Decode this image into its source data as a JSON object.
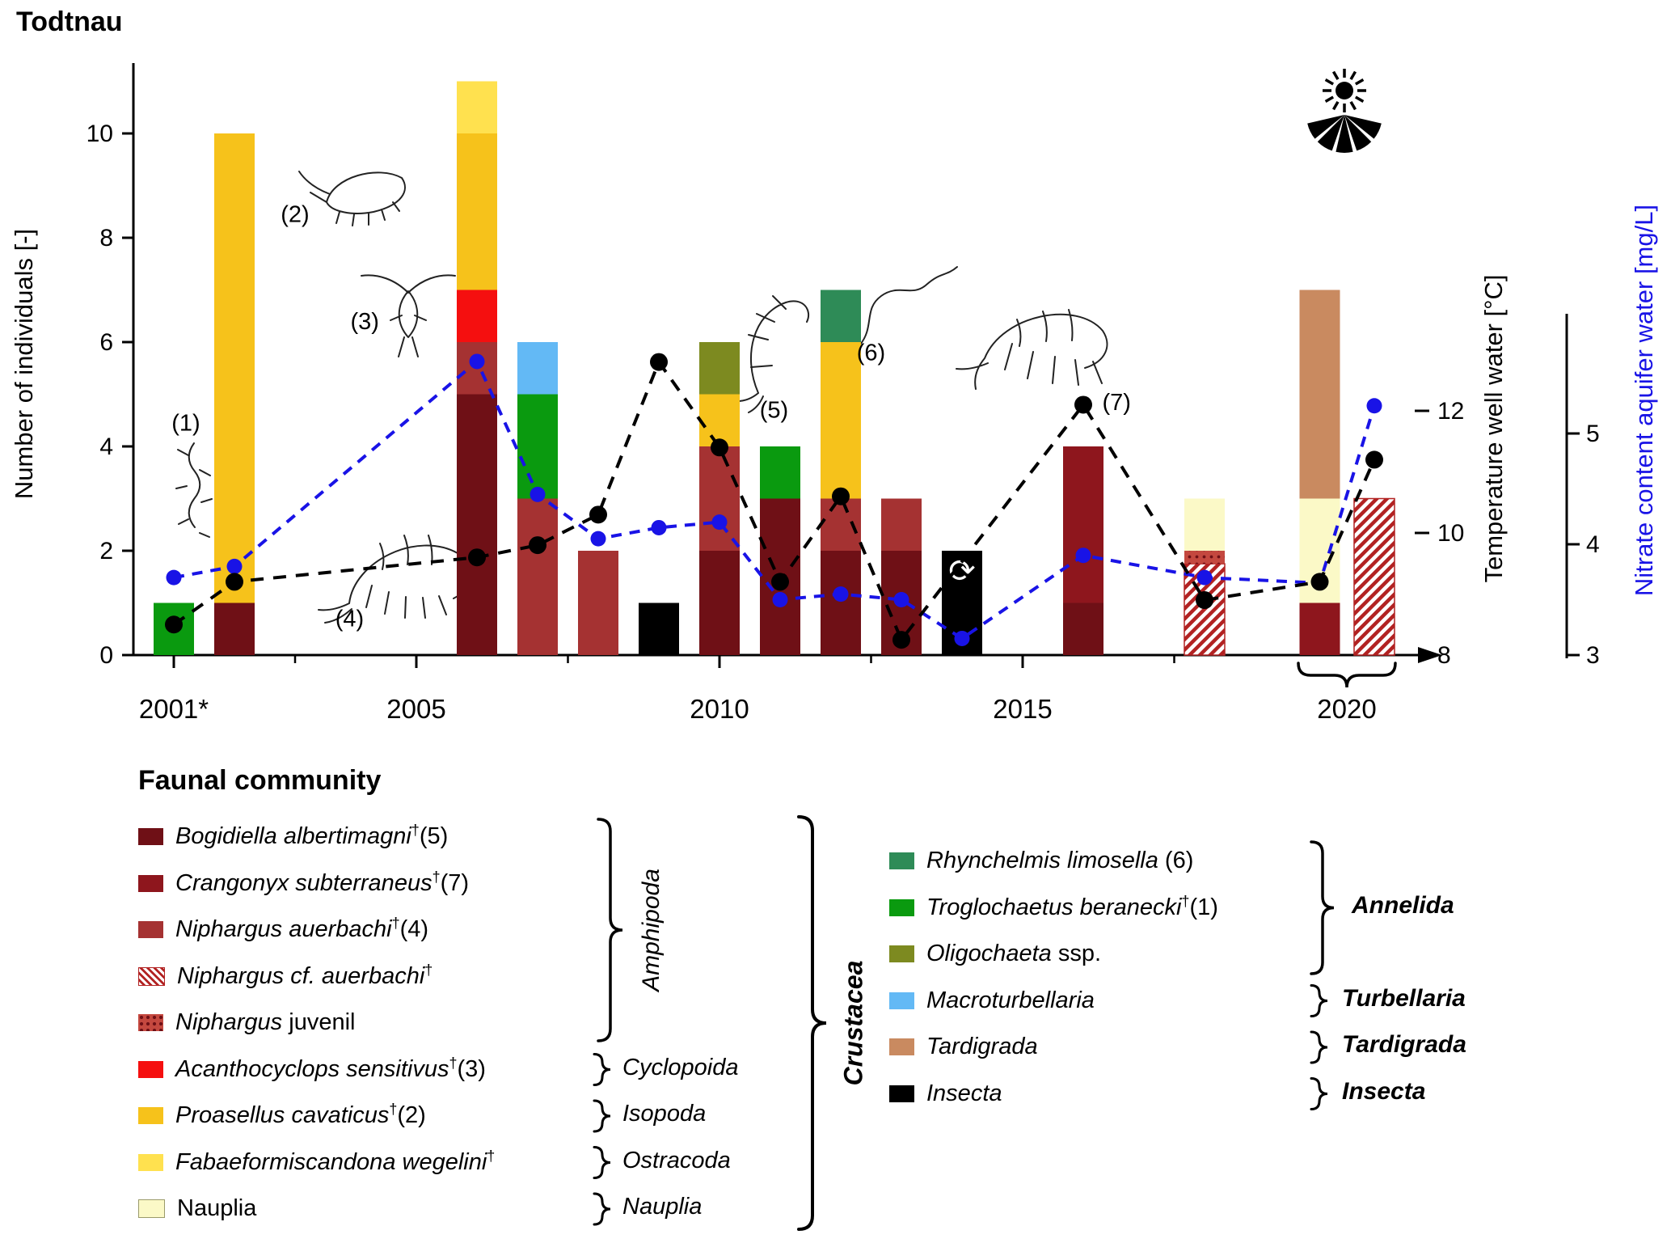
{
  "title": "Todtnau",
  "species": {
    "bogidiella": {
      "label": "Bogidiella albertimagni",
      "color": "#6f1016"
    },
    "crangonyx": {
      "label": "Crangonyx subterraneus",
      "color": "#8e161d"
    },
    "niphargus_auerbachi": {
      "label": "Niphargus auerbachi",
      "color": "#a53232"
    },
    "niphargus_cf": {
      "label": "Niphargus cf. auerbachi",
      "color": "#b22222",
      "pattern": "hatch"
    },
    "niphargus_juvenil": {
      "label": "Niphargus juvenil",
      "color": "#c4483f",
      "pattern": "dots"
    },
    "acanthocyclops": {
      "label": "Acanthocyclops sensitivus",
      "color": "#f50f0f"
    },
    "proasellus": {
      "label": "Proasellus cavaticus",
      "color": "#f6c21b"
    },
    "fabaeformiscandona": {
      "label": "Fabaeformiscandona wegelini",
      "color": "#ffe14f"
    },
    "nauplia": {
      "label": "Nauplia",
      "color": "#fbf9c7"
    },
    "rhynchelmis": {
      "label": "Rhynchelmis limosella",
      "color": "#2e8b57"
    },
    "troglochaetus": {
      "label": "Troglochaetus beranecki",
      "color": "#0a9a0f"
    },
    "oligochaeta": {
      "label": "Oligochaeta ssp.",
      "color": "#7d8a20"
    },
    "macroturbellaria": {
      "label": "Macroturbellaria",
      "color": "#63b9f5"
    },
    "tardigrada": {
      "label": "Tardigrada",
      "color": "#c98a60"
    },
    "insecta": {
      "label": "Insecta",
      "color": "#000000"
    }
  },
  "chart_data": {
    "type": "bar+line",
    "title": "Todtnau",
    "y_left": {
      "label": "Number of individuals [-]",
      "ticks": [
        0,
        2,
        4,
        6,
        8,
        10
      ],
      "range": [
        0,
        11.3
      ]
    },
    "y_right_temperature": {
      "label": "Temperature well water [°C]",
      "ticks": [
        8,
        10,
        12
      ],
      "unit": "°C",
      "color": "#000000"
    },
    "y_right_nitrate": {
      "label": "Nitrate content aquifer water [mg/L]",
      "ticks": [
        3,
        4,
        5
      ],
      "unit": "mg/L",
      "color": "#1913e6"
    },
    "x_ticks": [
      {
        "label": "2001*",
        "year": 2001
      },
      {
        "label": "2005",
        "year": 2005
      },
      {
        "label": "2010",
        "year": 2010
      },
      {
        "label": "2015",
        "year": 2015
      },
      {
        "label": "2020",
        "year": 2020
      }
    ],
    "x_minor_ticks": [
      2003,
      2007.5,
      2012.5,
      2017.5
    ],
    "bars": [
      {
        "x": 2001,
        "segments": [
          [
            "troglochaetus",
            1
          ]
        ]
      },
      {
        "x": 2002,
        "segments": [
          [
            "bogidiella",
            1
          ],
          [
            "proasellus",
            9
          ]
        ]
      },
      {
        "x": 2006,
        "segments": [
          [
            "bogidiella",
            5
          ],
          [
            "niphargus_auerbachi",
            1
          ],
          [
            "acanthocyclops",
            1
          ],
          [
            "proasellus",
            3
          ],
          [
            "fabaeformiscandona",
            1
          ]
        ]
      },
      {
        "x": 2007,
        "segments": [
          [
            "niphargus_auerbachi",
            3
          ],
          [
            "troglochaetus",
            2
          ],
          [
            "macroturbellaria",
            1
          ]
        ]
      },
      {
        "x": 2008,
        "segments": [
          [
            "niphargus_auerbachi",
            2
          ]
        ]
      },
      {
        "x": 2009,
        "segments": [
          [
            "insecta",
            1
          ]
        ]
      },
      {
        "x": 2010,
        "segments": [
          [
            "bogidiella",
            2
          ],
          [
            "niphargus_auerbachi",
            2
          ],
          [
            "proasellus",
            1
          ],
          [
            "oligochaeta",
            1
          ]
        ]
      },
      {
        "x": 2011,
        "segments": [
          [
            "bogidiella",
            3
          ],
          [
            "troglochaetus",
            1
          ]
        ]
      },
      {
        "x": 2012,
        "segments": [
          [
            "bogidiella",
            2
          ],
          [
            "niphargus_auerbachi",
            1
          ],
          [
            "proasellus",
            3
          ],
          [
            "rhynchelmis",
            1
          ]
        ]
      },
      {
        "x": 2013,
        "segments": [
          [
            "bogidiella",
            2
          ],
          [
            "niphargus_auerbachi",
            1
          ]
        ]
      },
      {
        "x": 2014,
        "segments": [
          [
            "insecta",
            2
          ]
        ],
        "symbol": "⟳"
      },
      {
        "x": 2016,
        "segments": [
          [
            "bogidiella",
            1
          ],
          [
            "crangonyx",
            3
          ]
        ]
      },
      {
        "x": 2018,
        "segments": [
          [
            "niphargus_cf",
            1.75
          ],
          [
            "niphargus_juvenil",
            0.25
          ],
          [
            "nauplia",
            1
          ]
        ]
      },
      {
        "x": 2019.9,
        "segments": [
          [
            "crangonyx",
            1
          ],
          [
            "nauplia",
            2
          ],
          [
            "tardigrada",
            4
          ]
        ]
      },
      {
        "x": 2020.8,
        "segments": [
          [
            "niphargus_cf",
            3
          ]
        ]
      }
    ],
    "temperature_series": {
      "name": "Temperature well water [°C]",
      "points": [
        [
          2001,
          8.5
        ],
        [
          2002,
          9.2
        ],
        [
          2006,
          9.6
        ],
        [
          2007,
          9.8
        ],
        [
          2008,
          10.3
        ],
        [
          2009,
          12.8
        ],
        [
          2010,
          11.4
        ],
        [
          2011,
          9.2
        ],
        [
          2012,
          10.6
        ],
        [
          2013,
          8.25
        ],
        [
          2016,
          12.1
        ],
        [
          2018,
          8.9
        ],
        [
          2019.9,
          9.2
        ],
        [
          2020.8,
          11.2
        ]
      ]
    },
    "nitrate_series": {
      "name": "Nitrate content aquifer water [mg/L]",
      "points": [
        [
          2001,
          3.7
        ],
        [
          2002,
          3.8
        ],
        [
          2006,
          5.65
        ],
        [
          2007,
          4.45
        ],
        [
          2008,
          4.05
        ],
        [
          2009,
          4.15
        ],
        [
          2010,
          4.2
        ],
        [
          2011,
          3.5
        ],
        [
          2012,
          3.55
        ],
        [
          2013,
          3.5
        ],
        [
          2014,
          3.15
        ],
        [
          2016,
          3.9
        ],
        [
          2018,
          3.7
        ],
        [
          2019.9,
          3.65
        ],
        [
          2020.8,
          5.25
        ]
      ],
      "hidden_dots": [
        2019.9
      ]
    },
    "annotations": [
      {
        "label": "(1)",
        "x": 2001.2,
        "y": 4.3
      },
      {
        "label": "(2)",
        "x": 2003.0,
        "y": 8.3
      },
      {
        "label": "(3)",
        "x": 2004.15,
        "y": 6.25
      },
      {
        "label": "(4)",
        "x": 2003.9,
        "y": 0.55
      },
      {
        "label": "(5)",
        "x": 2010.9,
        "y": 4.55
      },
      {
        "label": "(6)",
        "x": 2012.5,
        "y": 5.65
      },
      {
        "label": "(7)",
        "x": 2016.55,
        "y": 4.7
      }
    ],
    "bracket_group_label": "2020"
  },
  "legend": {
    "header": "Faunal community",
    "left_items": [
      {
        "key": "bogidiella",
        "it": "Bogidiella albertimagni",
        "dag": true,
        "num": "(5)"
      },
      {
        "key": "crangonyx",
        "it": "Crangonyx subterraneus",
        "dag": true,
        "num": "(7)"
      },
      {
        "key": "niphargus_auerbachi",
        "it": "Niphargus auerbachi",
        "dag": true,
        "num": "(4)"
      },
      {
        "key": "niphargus_cf",
        "it": "Niphargus cf. auerbachi",
        "dag": true
      },
      {
        "key": "niphargus_juvenil",
        "it": "Niphargus",
        "rm": " juvenil"
      },
      {
        "key": "acanthocyclops",
        "it": "Acanthocyclops sensitivus",
        "dag": true,
        "num": "(3)",
        "group": "Cyclopoida"
      },
      {
        "key": "proasellus",
        "it": "Proasellus cavaticus",
        "dag": true,
        "num": "(2)",
        "group": "Isopoda"
      },
      {
        "key": "fabaeformiscandona",
        "it": "Fabaeformiscandona wegelini",
        "dag": true,
        "group": "Ostracoda"
      },
      {
        "key": "nauplia",
        "rm": "Nauplia",
        "group": "Nauplia"
      }
    ],
    "amphipoda_group": "Amphipoda",
    "crustacea_group": "Crustacea",
    "right_items": [
      {
        "key": "rhynchelmis",
        "it": "Rhynchelmis limosella",
        "num": "(6)"
      },
      {
        "key": "troglochaetus",
        "it": "Troglochaetus beranecki",
        "dag": true,
        "num": "(1)"
      },
      {
        "key": "oligochaeta",
        "it": "Oligochaeta",
        "rm": " ssp."
      },
      {
        "key": "macroturbellaria",
        "it": "Macroturbellaria"
      },
      {
        "key": "tardigrada",
        "it": "Tardigrada"
      },
      {
        "key": "insecta",
        "it": "Insecta"
      }
    ],
    "right_groups": [
      "Annelida",
      "Turbellaria",
      "Tardigrada",
      "Insecta"
    ]
  },
  "icons": {
    "sun": "sun-icon",
    "pump_symbol": "⟳"
  }
}
